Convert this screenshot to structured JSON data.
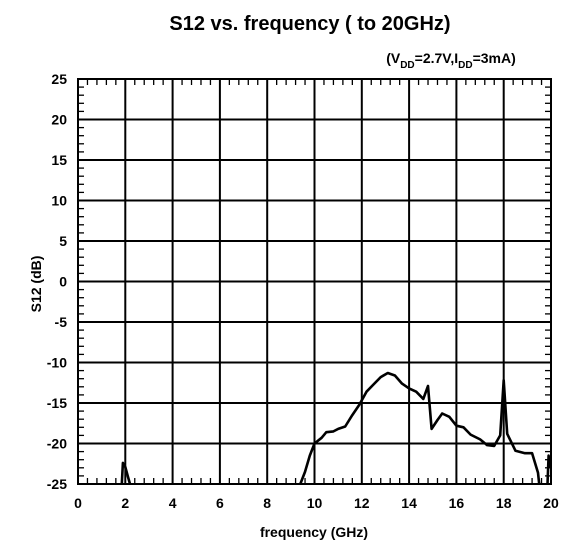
{
  "chart_data": {
    "type": "line",
    "title": "S12 vs. frequency ( to 20GHz)",
    "subtitle": {
      "open": "(V",
      "vsub": "DD",
      "mid": "=2.7V,I",
      "isub": "DD",
      "close": "=3mA)"
    },
    "xlabel": "frequency (GHz)",
    "ylabel": "S12 (dB)",
    "xlim": [
      0,
      20
    ],
    "ylim": [
      -25,
      25
    ],
    "xticks": [
      0,
      2,
      4,
      6,
      8,
      10,
      12,
      14,
      16,
      18,
      20
    ],
    "yticks": [
      25,
      20,
      15,
      10,
      5,
      0,
      -5,
      -10,
      -15,
      -20,
      -25
    ],
    "grid": true,
    "series": [
      {
        "segments": [
          [
            [
              1.85,
              -25.0
            ],
            [
              1.9,
              -22.4
            ],
            [
              2.0,
              -22.9
            ],
            [
              2.1,
              -24.0
            ],
            [
              2.2,
              -25.0
            ]
          ],
          [
            [
              9.4,
              -25.0
            ],
            [
              9.6,
              -23.5
            ],
            [
              9.8,
              -21.5
            ],
            [
              10.0,
              -20.0
            ],
            [
              10.3,
              -19.3
            ],
            [
              10.5,
              -18.6
            ],
            [
              10.8,
              -18.5
            ],
            [
              11.0,
              -18.2
            ],
            [
              11.3,
              -17.9
            ],
            [
              11.6,
              -16.5
            ],
            [
              11.9,
              -15.2
            ],
            [
              12.2,
              -13.6
            ],
            [
              12.5,
              -12.7
            ],
            [
              12.8,
              -11.8
            ],
            [
              13.1,
              -11.3
            ],
            [
              13.4,
              -11.6
            ],
            [
              13.7,
              -12.6
            ],
            [
              14.0,
              -13.2
            ],
            [
              14.3,
              -13.6
            ],
            [
              14.6,
              -14.5
            ],
            [
              14.8,
              -12.9
            ],
            [
              14.95,
              -18.2
            ],
            [
              15.2,
              -17.1
            ],
            [
              15.4,
              -16.3
            ],
            [
              15.7,
              -16.7
            ],
            [
              16.0,
              -17.8
            ],
            [
              16.3,
              -18.0
            ],
            [
              16.6,
              -18.9
            ],
            [
              17.0,
              -19.5
            ],
            [
              17.3,
              -20.2
            ],
            [
              17.6,
              -20.3
            ],
            [
              17.85,
              -19.0
            ],
            [
              18.0,
              -12.2
            ],
            [
              18.15,
              -18.8
            ],
            [
              18.5,
              -20.9
            ],
            [
              18.9,
              -21.2
            ],
            [
              19.2,
              -21.2
            ],
            [
              19.45,
              -23.6
            ],
            [
              19.5,
              -25.0
            ]
          ],
          [
            [
              19.85,
              -25.0
            ],
            [
              19.9,
              -21.5
            ],
            [
              19.95,
              -23.0
            ]
          ]
        ]
      }
    ]
  }
}
